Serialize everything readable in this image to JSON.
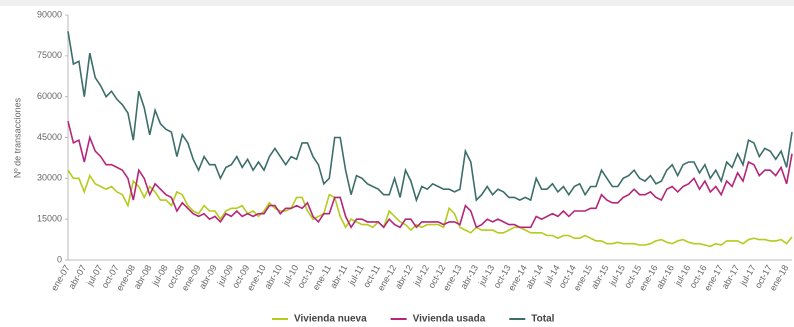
{
  "chart_data": {
    "type": "line",
    "y_label": "Nº de transacciones",
    "categories": [
      "ene-07",
      null,
      null,
      "abr-07",
      null,
      null,
      "jul-07",
      null,
      null,
      "oct-07",
      null,
      null,
      "ene-08",
      null,
      null,
      "abr-08",
      null,
      null,
      "jul-08",
      null,
      null,
      "oct-08",
      null,
      null,
      "ene-09",
      null,
      null,
      "abr-09",
      null,
      null,
      "jul-09",
      null,
      null,
      "oct-09",
      null,
      null,
      "ene-10",
      null,
      null,
      "abr-10",
      null,
      null,
      "jul-10",
      null,
      null,
      "oct-10",
      null,
      null,
      "ene-11",
      null,
      null,
      "abr-11",
      null,
      null,
      "jul-11",
      null,
      null,
      "oct-11",
      null,
      null,
      "ene-12",
      null,
      null,
      "abr-12",
      null,
      null,
      "jul-12",
      null,
      null,
      "oct-12",
      null,
      null,
      "ene-13",
      null,
      null,
      "abr-13",
      null,
      null,
      "jul-13",
      null,
      null,
      "oct-13",
      null,
      null,
      "ene-14",
      null,
      null,
      "abr-14",
      null,
      null,
      "jul-14",
      null,
      null,
      "oct-14",
      null,
      null,
      "ene-15",
      null,
      null,
      "abr-15",
      null,
      null,
      "jul-15",
      null,
      null,
      "oct-15",
      null,
      null,
      "ene-16",
      null,
      null,
      "abr-16",
      null,
      null,
      "jul-16",
      null,
      null,
      "oct-16",
      null,
      null,
      "ene-17",
      null,
      null,
      "abr-17",
      null,
      null,
      "jul-17",
      null,
      null,
      "oct-17",
      null,
      null,
      "ene-18",
      null
    ],
    "series": [
      {
        "name": "Vivienda nueva",
        "color": "#b5cc1c",
        "values": [
          33000,
          30000,
          30000,
          25000,
          31000,
          28000,
          27000,
          26000,
          27000,
          25000,
          24000,
          20000,
          29000,
          27000,
          23000,
          27000,
          25000,
          22000,
          22000,
          20000,
          25000,
          24000,
          20000,
          18000,
          17000,
          20000,
          18000,
          18000,
          15000,
          18000,
          19000,
          19000,
          20000,
          17000,
          18000,
          16000,
          18000,
          21000,
          19000,
          18000,
          18000,
          19000,
          23000,
          23000,
          18000,
          15000,
          16000,
          17000,
          24000,
          23000,
          16000,
          12000,
          15000,
          14000,
          13000,
          13000,
          12000,
          14000,
          12000,
          18000,
          16000,
          14000,
          13000,
          11000,
          13000,
          12000,
          13000,
          13000,
          13000,
          12000,
          19000,
          17000,
          12000,
          11000,
          10000,
          12000,
          11000,
          11000,
          11000,
          10000,
          10000,
          11000,
          12000,
          12000,
          11000,
          10000,
          10000,
          10000,
          9000,
          9000,
          8000,
          9000,
          9000,
          8000,
          8000,
          9000,
          8000,
          7000,
          7000,
          6000,
          6000,
          6500,
          6000,
          6000,
          6000,
          5500,
          5500,
          6000,
          7000,
          7500,
          6500,
          6000,
          7000,
          7500,
          6500,
          6000,
          6000,
          5500,
          5000,
          6000,
          5500,
          7000,
          7000,
          7000,
          6000,
          7500,
          8000,
          7500,
          7500,
          7000,
          7000,
          7500,
          6000,
          8500
        ]
      },
      {
        "name": "Vivienda usada",
        "color": "#b5267a",
        "values": [
          51000,
          43000,
          44000,
          36000,
          45000,
          40000,
          38000,
          35000,
          35000,
          34000,
          33000,
          30000,
          22000,
          33000,
          30000,
          24000,
          28000,
          26000,
          24000,
          23000,
          18000,
          21000,
          19000,
          17000,
          16000,
          17000,
          15000,
          16000,
          14000,
          17000,
          16000,
          18000,
          16000,
          17000,
          16000,
          17000,
          17000,
          20000,
          20000,
          17000,
          19000,
          19000,
          20000,
          19000,
          21000,
          16000,
          14000,
          17000,
          17000,
          23000,
          23000,
          16000,
          12000,
          15000,
          15000,
          14000,
          14000,
          14000,
          12000,
          15000,
          13000,
          12000,
          15000,
          15000,
          12000,
          14000,
          14000,
          14000,
          14000,
          13000,
          14000,
          14000,
          13000,
          20000,
          18000,
          12000,
          13000,
          15000,
          14000,
          15000,
          14000,
          13000,
          13000,
          12000,
          12000,
          12000,
          16000,
          15000,
          16000,
          17000,
          16000,
          18000,
          16000,
          18000,
          18000,
          18000,
          19000,
          19000,
          24000,
          22000,
          21000,
          21000,
          23000,
          24000,
          26000,
          24000,
          24000,
          25000,
          23000,
          22000,
          26000,
          27000,
          25000,
          27000,
          28000,
          30000,
          26000,
          29000,
          25000,
          27000,
          24000,
          29000,
          27000,
          32000,
          29000,
          36000,
          35000,
          31000,
          33000,
          33000,
          31000,
          34000,
          28000,
          39000
        ]
      },
      {
        "name": "Total",
        "color": "#3d6e6a",
        "values": [
          84000,
          72000,
          73000,
          60000,
          76000,
          67000,
          64000,
          60000,
          62000,
          59000,
          57000,
          54000,
          44000,
          62000,
          56000,
          46000,
          55000,
          50000,
          48000,
          47000,
          38000,
          46000,
          43000,
          37000,
          33000,
          38000,
          35000,
          35000,
          30000,
          34000,
          35000,
          38000,
          34000,
          37000,
          33000,
          36000,
          33000,
          38000,
          41000,
          38000,
          35000,
          38000,
          37000,
          43000,
          43000,
          38000,
          35000,
          28000,
          30000,
          45000,
          45000,
          33000,
          24000,
          31000,
          30000,
          28000,
          27000,
          26000,
          24000,
          24000,
          30000,
          23000,
          33000,
          29000,
          22000,
          27000,
          26000,
          28000,
          27000,
          26000,
          26000,
          25000,
          26000,
          40000,
          36000,
          22000,
          24000,
          27000,
          24000,
          26000,
          25000,
          23000,
          23000,
          22000,
          23000,
          22000,
          30000,
          26000,
          26000,
          28000,
          25000,
          27000,
          24000,
          27000,
          28000,
          24000,
          27000,
          27000,
          33000,
          30000,
          27000,
          27000,
          30000,
          31000,
          33000,
          30000,
          29000,
          31000,
          28000,
          29000,
          33000,
          35000,
          31000,
          35000,
          36000,
          36000,
          32000,
          35000,
          30000,
          33000,
          29000,
          36000,
          34000,
          39000,
          35000,
          44000,
          43000,
          38000,
          41000,
          40000,
          37000,
          40000,
          34000,
          47000
        ]
      }
    ],
    "ylim": [
      0,
      90000
    ],
    "yticks": [
      0,
      15000,
      30000,
      45000,
      60000,
      75000,
      90000
    ],
    "grid": false,
    "legend": "bottom"
  }
}
